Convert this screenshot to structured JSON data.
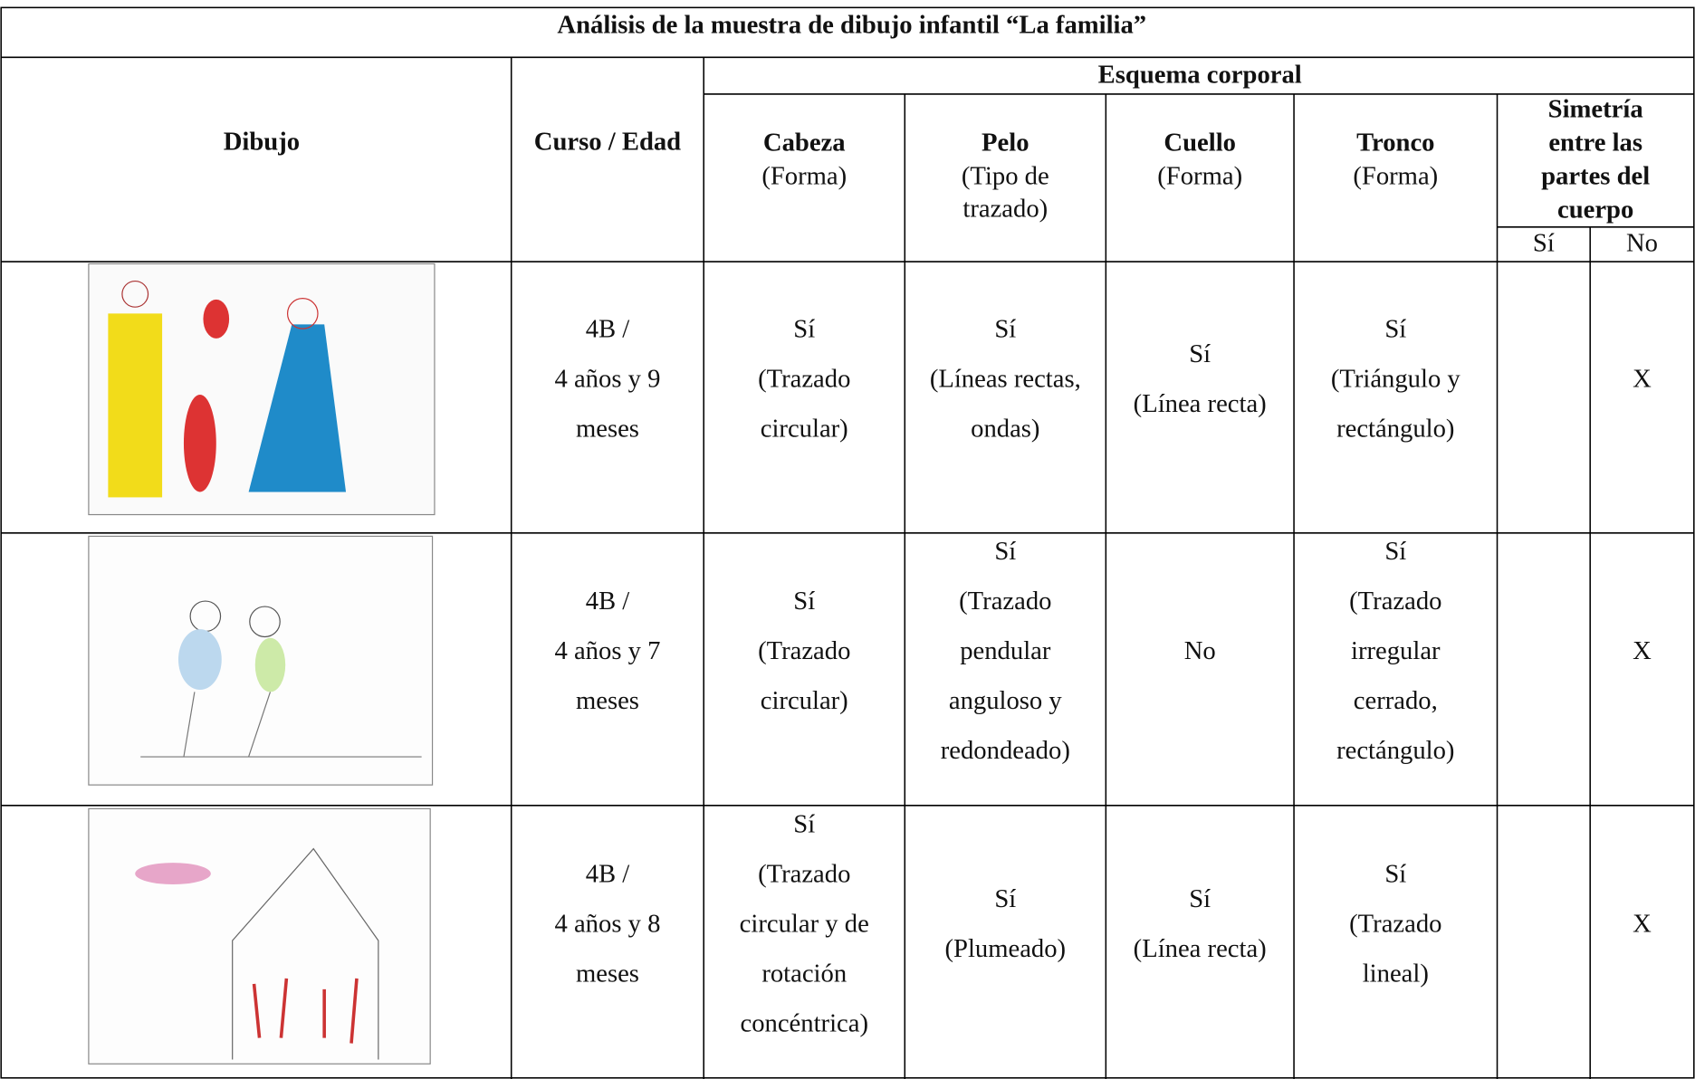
{
  "title": "Análisis de la muestra de dibujo infantil “La familia”",
  "table": {
    "header": {
      "dibujo": "Dibujo",
      "curso": "Curso / Edad",
      "group": "Esquema corporal",
      "columns": [
        {
          "name": "Cabeza",
          "sub": [
            "(Forma)"
          ]
        },
        {
          "name": "Pelo",
          "sub": [
            "(Tipo de",
            "trazado)"
          ]
        },
        {
          "name": "Cuello",
          "sub": [
            "(Forma)"
          ]
        },
        {
          "name": "Tronco",
          "sub": [
            "(Forma)"
          ]
        }
      ],
      "simetria": [
        "Simetría",
        "entre las",
        "partes del",
        "cuerpo"
      ],
      "si": "Sí",
      "no": "No"
    },
    "rows": [
      {
        "curso": [
          "4B /",
          "4 años y 9",
          "meses"
        ],
        "cells": [
          [
            "Sí",
            "(Trazado",
            "circular)"
          ],
          [
            "Sí",
            "(Líneas rectas,",
            "ondas)"
          ],
          [
            "Sí",
            "(Línea recta)"
          ],
          [
            "Sí",
            "(Triángulo y",
            "rectángulo)"
          ]
        ],
        "no": "X"
      },
      {
        "curso": [
          "4B /",
          "4 años y 7",
          "meses"
        ],
        "cells": [
          [
            "Sí",
            "(Trazado",
            "circular)"
          ],
          [
            "Sí",
            "(Trazado",
            "pendular",
            "anguloso y",
            "redondeado)"
          ],
          [
            "No"
          ],
          [
            "Sí",
            "(Trazado",
            "irregular",
            "cerrado,",
            "rectángulo)"
          ]
        ],
        "no": "X"
      },
      {
        "curso": [
          "4B /",
          "4 años y 8",
          "meses"
        ],
        "cells": [
          [
            "Sí",
            "(Trazado",
            "circular y de",
            "rotación",
            "concéntrica)"
          ],
          [
            "Sí",
            "(Plumeado)"
          ],
          [
            "Sí",
            "(Línea recta)"
          ],
          [
            "Sí",
            "(Trazado",
            "lineal)"
          ]
        ],
        "no": "X"
      }
    ]
  }
}
